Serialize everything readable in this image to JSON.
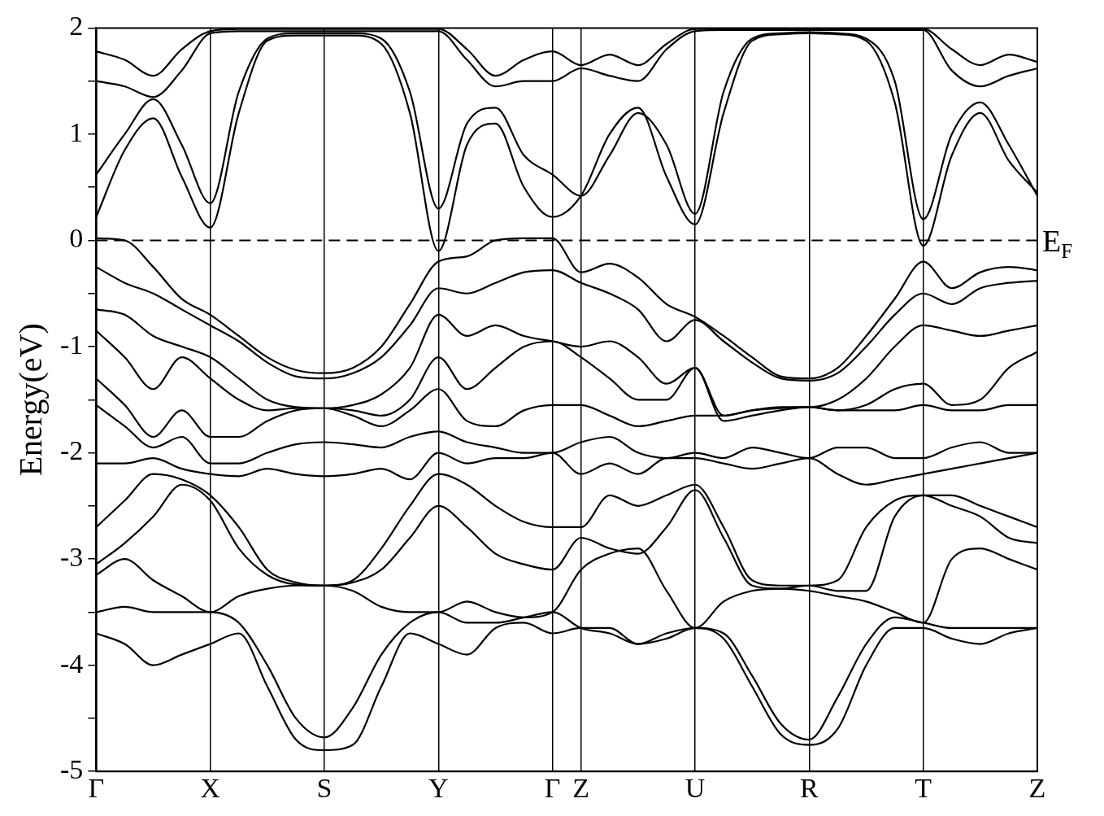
{
  "chart_data": {
    "type": "line",
    "ylabel": "Energy(eV)",
    "categories": [
      "Γ",
      null,
      null,
      null,
      "X",
      null,
      null,
      null,
      "S",
      null,
      null,
      null,
      "Y",
      null,
      null,
      null,
      "Γ",
      "Z",
      null,
      null,
      null,
      "U",
      null,
      null,
      null,
      "R",
      null,
      null,
      null,
      "T",
      null,
      null,
      null,
      "Z"
    ],
    "ylim": [
      -5,
      2
    ],
    "yticks": [
      -5,
      {
        "value": -4.5,
        "label": null
      },
      -4,
      {
        "value": -3.5,
        "label": null
      },
      -3,
      {
        "value": -2.5,
        "label": null
      },
      -2,
      {
        "value": -1.5,
        "label": null
      },
      -1,
      {
        "value": -0.5,
        "label": null
      },
      0,
      {
        "value": 0.5,
        "label": null
      },
      1,
      {
        "value": 1.5,
        "label": null
      },
      2
    ],
    "grid": "x",
    "ref_lines": [
      {
        "axis": "y",
        "value": 0,
        "label": "E$_{F}$",
        "line_style": "dashed",
        "color": "#000000"
      }
    ],
    "series": [
      {
        "color": "#000000",
        "values": [
          0.22,
          0.85,
          1.15,
          0.6,
          0.12,
          1.2,
          1.88,
          1.93,
          1.93,
          1.93,
          1.85,
          1.2,
          -0.1,
          0.9,
          1.1,
          0.5,
          0.22,
          0.42,
          1.0,
          1.25,
          0.6,
          0.15,
          1.2,
          1.88,
          1.94,
          1.95,
          1.94,
          1.88,
          1.3,
          -0.05,
          0.8,
          1.2,
          0.75,
          0.45
        ]
      },
      {
        "color": "#000000",
        "values": [
          0.62,
          1.0,
          1.33,
          0.9,
          0.35,
          1.4,
          1.9,
          1.95,
          1.95,
          1.95,
          1.9,
          1.4,
          0.3,
          1.1,
          1.25,
          0.8,
          0.62,
          0.42,
          0.8,
          1.2,
          0.9,
          0.25,
          1.4,
          1.9,
          1.95,
          1.96,
          1.95,
          1.9,
          1.5,
          0.2,
          1.0,
          1.3,
          0.9,
          0.42
        ]
      },
      {
        "color": "#000000",
        "values": [
          1.5,
          1.45,
          1.35,
          1.6,
          1.95,
          1.97,
          1.97,
          1.97,
          1.97,
          1.97,
          1.97,
          1.97,
          1.97,
          1.7,
          1.45,
          1.5,
          1.5,
          1.62,
          1.55,
          1.5,
          1.8,
          1.97,
          1.98,
          1.98,
          1.98,
          1.98,
          1.98,
          1.98,
          1.98,
          1.98,
          1.6,
          1.45,
          1.55,
          1.62
        ]
      },
      {
        "color": "#000000",
        "values": [
          1.78,
          1.7,
          1.55,
          1.8,
          1.97,
          1.99,
          1.99,
          1.99,
          1.99,
          1.99,
          1.99,
          1.99,
          1.99,
          1.8,
          1.55,
          1.7,
          1.78,
          1.65,
          1.75,
          1.65,
          1.85,
          1.99,
          1.99,
          1.99,
          1.99,
          1.99,
          1.99,
          1.99,
          1.99,
          1.99,
          1.8,
          1.65,
          1.75,
          1.68
        ]
      },
      {
        "color": "#000000",
        "values": [
          0.02,
          0.0,
          -0.25,
          -0.55,
          -0.7,
          -0.9,
          -1.1,
          -1.22,
          -1.25,
          -1.2,
          -1.0,
          -0.6,
          -0.2,
          -0.15,
          0.0,
          0.02,
          0.02,
          -0.3,
          -0.22,
          -0.35,
          -0.6,
          -0.72,
          -0.9,
          -1.1,
          -1.28,
          -1.3,
          -1.2,
          -0.9,
          -0.55,
          -0.2,
          -0.45,
          -0.3,
          -0.25,
          -0.28
        ]
      },
      {
        "color": "#000000",
        "values": [
          -0.25,
          -0.4,
          -0.5,
          -0.65,
          -0.8,
          -0.95,
          -1.15,
          -1.28,
          -1.3,
          -1.25,
          -1.1,
          -0.8,
          -0.45,
          -0.5,
          -0.4,
          -0.3,
          -0.28,
          -0.4,
          -0.5,
          -0.65,
          -0.95,
          -0.75,
          -0.95,
          -1.15,
          -1.3,
          -1.32,
          -1.25,
          -1.0,
          -0.7,
          -0.5,
          -0.6,
          -0.45,
          -0.4,
          -0.38
        ]
      },
      {
        "color": "#000000",
        "values": [
          -0.65,
          -0.7,
          -0.9,
          -1.0,
          -1.1,
          -1.3,
          -1.5,
          -1.57,
          -1.58,
          -1.55,
          -1.45,
          -1.2,
          -0.7,
          -0.9,
          -0.8,
          -0.9,
          -0.95,
          -1.0,
          -0.95,
          -1.1,
          -1.35,
          -1.2,
          -1.65,
          -1.6,
          -1.57,
          -1.57,
          -1.5,
          -1.3,
          -1.0,
          -0.8,
          -0.85,
          -0.9,
          -0.85,
          -0.8
        ]
      },
      {
        "color": "#000000",
        "values": [
          -0.85,
          -1.1,
          -1.4,
          -1.1,
          -1.3,
          -1.5,
          -1.6,
          -1.58,
          -1.58,
          -1.6,
          -1.65,
          -1.5,
          -1.1,
          -1.4,
          -1.2,
          -1.0,
          -0.95,
          -1.1,
          -1.3,
          -1.5,
          -1.5,
          -1.2,
          -1.7,
          -1.65,
          -1.6,
          -1.57,
          -1.6,
          -1.55,
          -1.4,
          -1.35,
          -1.55,
          -1.5,
          -1.2,
          -1.05
        ]
      },
      {
        "color": "#000000",
        "values": [
          -1.3,
          -1.55,
          -1.85,
          -1.6,
          -1.85,
          -1.85,
          -1.7,
          -1.6,
          -1.58,
          -1.65,
          -1.75,
          -1.6,
          -1.4,
          -1.7,
          -1.75,
          -1.6,
          -1.55,
          -1.55,
          -1.65,
          -1.75,
          -1.7,
          -1.65,
          -1.65,
          -1.6,
          -1.58,
          -1.57,
          -1.6,
          -1.6,
          -1.6,
          -1.55,
          -1.6,
          -1.6,
          -1.55,
          -1.55
        ]
      },
      {
        "color": "#000000",
        "values": [
          -1.55,
          -1.75,
          -1.95,
          -1.85,
          -2.1,
          -2.1,
          -2.0,
          -1.92,
          -1.9,
          -1.92,
          -1.95,
          -1.85,
          -1.8,
          -1.9,
          -1.95,
          -2.0,
          -2.0,
          -1.9,
          -1.85,
          -2.0,
          -2.05,
          -2.0,
          -2.05,
          -1.95,
          -2.0,
          -2.05,
          -1.95,
          -1.95,
          -2.05,
          -2.05,
          -1.95,
          -1.9,
          -2.0,
          -2.0
        ]
      },
      {
        "color": "#000000",
        "values": [
          -2.1,
          -2.1,
          -2.05,
          -2.15,
          -2.2,
          -2.22,
          -2.15,
          -2.2,
          -2.22,
          -2.2,
          -2.15,
          -2.25,
          -2.0,
          -2.1,
          -2.05,
          -2.05,
          -2.0,
          -2.2,
          -2.1,
          -2.2,
          -2.05,
          -2.05,
          -2.1,
          -2.15,
          -2.1,
          -2.05,
          -2.2,
          -2.3,
          -2.25,
          -2.2,
          -2.15,
          -2.1,
          -2.05,
          -2.0
        ]
      },
      {
        "color": "#000000",
        "values": [
          -2.7,
          -2.45,
          -2.2,
          -2.25,
          -2.4,
          -2.7,
          -3.1,
          -3.22,
          -3.25,
          -3.2,
          -2.9,
          -2.5,
          -2.2,
          -2.3,
          -2.5,
          -2.65,
          -2.7,
          -2.7,
          -2.4,
          -2.5,
          -2.4,
          -2.3,
          -2.7,
          -3.2,
          -3.25,
          -3.25,
          -3.2,
          -2.7,
          -2.45,
          -2.4,
          -2.4,
          -2.5,
          -2.6,
          -2.7
        ]
      },
      {
        "color": "#000000",
        "values": [
          -3.05,
          -2.85,
          -2.6,
          -2.3,
          -2.45,
          -2.9,
          -3.15,
          -3.24,
          -3.25,
          -3.22,
          -3.1,
          -2.8,
          -2.5,
          -2.7,
          -2.95,
          -3.05,
          -3.1,
          -2.8,
          -2.9,
          -2.95,
          -2.7,
          -2.35,
          -2.8,
          -3.25,
          -3.28,
          -3.25,
          -3.3,
          -3.3,
          -2.6,
          -2.4,
          -2.5,
          -2.6,
          -2.8,
          -2.85
        ]
      },
      {
        "color": "#000000",
        "values": [
          -3.15,
          -3.0,
          -3.2,
          -3.35,
          -3.5,
          -3.35,
          -3.28,
          -3.25,
          -3.25,
          -3.3,
          -3.45,
          -3.5,
          -3.5,
          -3.4,
          -3.5,
          -3.55,
          -3.5,
          -3.1,
          -2.95,
          -2.9,
          -3.3,
          -3.65,
          -3.4,
          -3.3,
          -3.28,
          -3.3,
          -3.35,
          -3.4,
          -3.5,
          -3.6,
          -3.0,
          -2.9,
          -3.0,
          -3.1
        ]
      },
      {
        "color": "#000000",
        "values": [
          -3.5,
          -3.45,
          -3.5,
          -3.5,
          -3.5,
          -3.6,
          -4.0,
          -4.5,
          -4.68,
          -4.4,
          -3.9,
          -3.6,
          -3.5,
          -3.6,
          -3.6,
          -3.55,
          -3.5,
          -3.65,
          -3.7,
          -3.8,
          -3.7,
          -3.65,
          -3.7,
          -4.1,
          -4.55,
          -4.7,
          -4.3,
          -3.8,
          -3.55,
          -3.6,
          -3.65,
          -3.65,
          -3.65,
          -3.65
        ]
      },
      {
        "color": "#000000",
        "values": [
          -3.7,
          -3.8,
          -4.0,
          -3.9,
          -3.8,
          -3.7,
          -4.2,
          -4.7,
          -4.8,
          -4.75,
          -4.2,
          -3.7,
          -3.8,
          -3.9,
          -3.65,
          -3.6,
          -3.7,
          -3.65,
          -3.65,
          -3.8,
          -3.75,
          -3.65,
          -3.75,
          -4.2,
          -4.65,
          -4.75,
          -4.6,
          -4.0,
          -3.65,
          -3.65,
          -3.75,
          -3.8,
          -3.7,
          -3.65
        ]
      }
    ]
  }
}
